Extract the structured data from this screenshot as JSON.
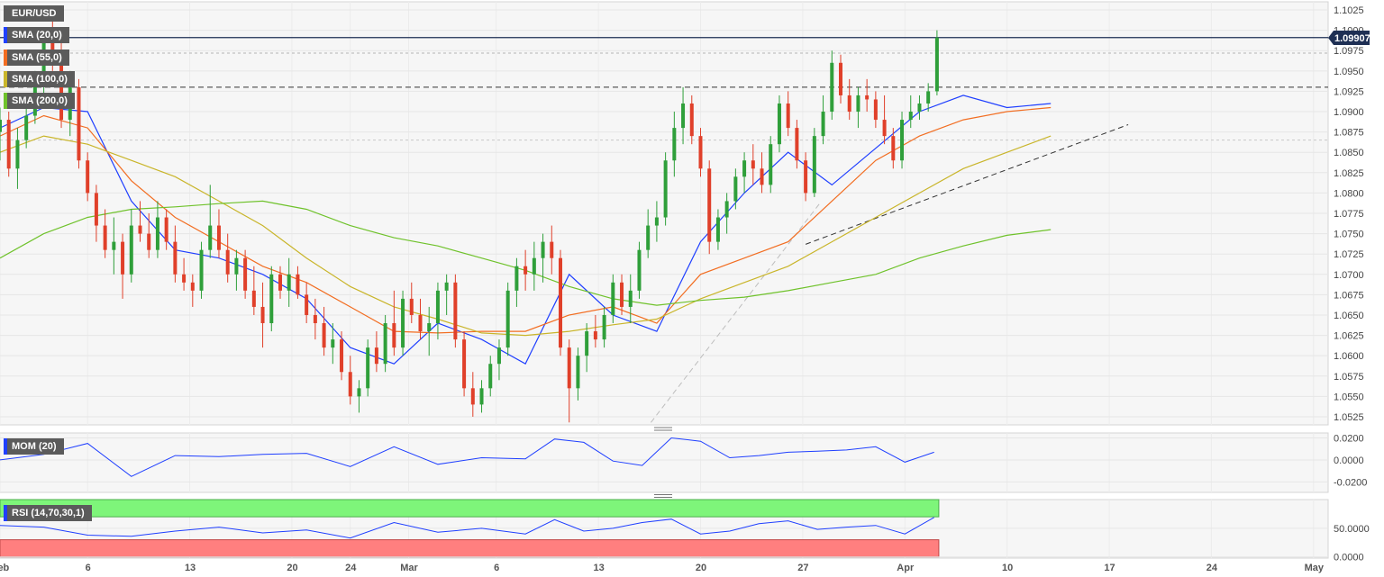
{
  "chart_data": {
    "type": "candlestick",
    "symbol": "EUR/USD",
    "last_price": "1.09907",
    "price_axis": {
      "ylim": [
        1.0515,
        1.1035
      ],
      "ticks": [
        "1.0525",
        "1.0550",
        "1.0575",
        "1.0600",
        "1.0625",
        "1.0650",
        "1.0675",
        "1.0700",
        "1.0725",
        "1.0750",
        "1.0775",
        "1.0800",
        "1.0825",
        "1.0850",
        "1.0875",
        "1.0900",
        "1.0925",
        "1.0950",
        "1.0975",
        "1.1000",
        "1.1025"
      ]
    },
    "x_axis": {
      "labels": [
        "Feb",
        "6",
        "13",
        "20",
        "24",
        "Mar",
        "6",
        "13",
        "20",
        "27",
        "Apr",
        "10",
        "17",
        "24",
        "May"
      ],
      "range_days": [
        0,
        91
      ]
    },
    "legend": [
      {
        "label": "EUR/USD",
        "color": "#5b5b5b"
      },
      {
        "label": "SMA (20,0)",
        "color": "#1f3fff"
      },
      {
        "label": "SMA (55,0)",
        "color": "#f26d21"
      },
      {
        "label": "SMA (100,0)",
        "color": "#c9b52a"
      },
      {
        "label": "SMA (200,0)",
        "color": "#6fc22b"
      }
    ],
    "horizontal_lines": [
      {
        "value": 1.0991,
        "style": "solid",
        "color": "#1e2f54"
      },
      {
        "value": 1.0972,
        "style": "dotted",
        "color": "#b4b4b4"
      },
      {
        "value": 1.093,
        "style": "dashed",
        "color": "#333333"
      },
      {
        "value": 1.0865,
        "style": "dotted",
        "color": "#c8c8c8"
      }
    ],
    "trendlines": [
      {
        "from": [
          55.2,
          1.0737
        ],
        "to": [
          77.3,
          1.0884
        ],
        "style": "dashed",
        "color": "#333333"
      },
      {
        "from": [
          44.6,
          1.0518
        ],
        "to": [
          56.2,
          1.0788
        ],
        "style": "dashed",
        "color": "#bdbdbd"
      }
    ],
    "sma": [
      {
        "name": "SMA (20,0)",
        "color": "#1f3fff",
        "x": [
          0,
          3,
          6,
          9,
          12,
          15,
          18,
          21,
          24,
          27,
          30,
          33,
          36,
          39,
          42,
          45,
          48,
          51,
          54,
          57,
          60,
          63,
          66,
          69,
          72
        ],
        "values": [
          1.088,
          1.0905,
          1.09,
          1.079,
          1.073,
          1.072,
          1.07,
          1.067,
          1.061,
          1.059,
          1.064,
          1.062,
          1.059,
          1.07,
          1.065,
          1.063,
          1.074,
          1.08,
          1.085,
          1.081,
          1.0855,
          1.09,
          1.092,
          1.0905,
          1.091
        ]
      },
      {
        "name": "SMA (55,0)",
        "color": "#f26d21",
        "x": [
          0,
          3,
          6,
          9,
          12,
          15,
          18,
          21,
          24,
          27,
          30,
          33,
          36,
          39,
          42,
          45,
          48,
          51,
          54,
          57,
          60,
          63,
          66,
          69,
          72
        ],
        "values": [
          1.087,
          1.0895,
          1.088,
          1.0815,
          1.077,
          1.074,
          1.071,
          1.069,
          1.066,
          1.063,
          1.0628,
          1.063,
          1.063,
          1.065,
          1.066,
          1.064,
          1.07,
          1.072,
          1.074,
          1.079,
          1.084,
          1.087,
          1.089,
          1.09,
          1.0905
        ]
      },
      {
        "name": "SMA (100,0)",
        "color": "#c9b52a",
        "x": [
          0,
          3,
          6,
          9,
          12,
          15,
          18,
          21,
          24,
          27,
          30,
          33,
          36,
          39,
          42,
          45,
          48,
          51,
          54,
          57,
          60,
          63,
          66,
          69,
          72
        ],
        "values": [
          1.085,
          1.087,
          1.086,
          1.084,
          1.082,
          1.079,
          1.076,
          1.072,
          1.0685,
          1.066,
          1.0645,
          1.0628,
          1.0625,
          1.063,
          1.0638,
          1.0645,
          1.067,
          1.069,
          1.071,
          1.074,
          1.077,
          1.08,
          1.083,
          1.085,
          1.087
        ]
      },
      {
        "name": "SMA (200,0)",
        "color": "#6fc22b",
        "x": [
          0,
          3,
          6,
          9,
          12,
          15,
          18,
          21,
          24,
          27,
          30,
          33,
          36,
          39,
          42,
          45,
          48,
          51,
          54,
          57,
          60,
          63,
          66,
          69,
          72
        ],
        "values": [
          1.072,
          1.075,
          1.077,
          1.078,
          1.0783,
          1.0787,
          1.079,
          1.078,
          1.076,
          1.0745,
          1.0735,
          1.072,
          1.0705,
          1.0685,
          1.067,
          1.0662,
          1.0668,
          1.0672,
          1.068,
          1.069,
          1.07,
          1.072,
          1.0735,
          1.0748,
          1.0755
        ]
      }
    ],
    "candles": [
      [
        0.0,
        1.0875,
        1.0905,
        1.084,
        1.089
      ],
      [
        0.6,
        1.089,
        1.09,
        1.082,
        1.083
      ],
      [
        1.2,
        1.083,
        1.088,
        1.0805,
        1.0865
      ],
      [
        1.8,
        1.0865,
        1.0905,
        1.0855,
        1.0895
      ],
      [
        2.4,
        1.0895,
        1.095,
        1.0885,
        1.0935
      ],
      [
        3.0,
        1.0935,
        1.1,
        1.092,
        1.0985
      ],
      [
        3.6,
        1.0985,
        1.103,
        1.095,
        1.096
      ],
      [
        4.2,
        1.096,
        1.099,
        1.088,
        1.089
      ],
      [
        4.8,
        1.089,
        1.095,
        1.087,
        1.093
      ],
      [
        5.4,
        1.093,
        1.094,
        1.083,
        1.084
      ],
      [
        6.0,
        1.084,
        1.085,
        1.079,
        1.08
      ],
      [
        6.6,
        1.08,
        1.081,
        1.074,
        1.076
      ],
      [
        7.2,
        1.076,
        1.078,
        1.072,
        1.073
      ],
      [
        7.8,
        1.073,
        1.077,
        1.07,
        1.074
      ],
      [
        8.4,
        1.074,
        1.075,
        1.067,
        1.07
      ],
      [
        9.0,
        1.07,
        1.078,
        1.069,
        1.076
      ],
      [
        9.6,
        1.076,
        1.079,
        1.074,
        1.075
      ],
      [
        10.2,
        1.075,
        1.0775,
        1.072,
        1.073
      ],
      [
        10.8,
        1.073,
        1.079,
        1.072,
        1.077
      ],
      [
        11.4,
        1.077,
        1.078,
        1.073,
        1.074
      ],
      [
        12.0,
        1.074,
        1.076,
        1.069,
        1.07
      ],
      [
        12.6,
        1.07,
        1.072,
        1.068,
        1.069
      ],
      [
        13.2,
        1.069,
        1.07,
        1.066,
        1.068
      ],
      [
        13.8,
        1.068,
        1.074,
        1.067,
        1.073
      ],
      [
        14.4,
        1.073,
        1.081,
        1.072,
        1.076
      ],
      [
        15.0,
        1.076,
        1.078,
        1.072,
        1.073
      ],
      [
        15.6,
        1.073,
        1.075,
        1.069,
        1.07
      ],
      [
        16.2,
        1.07,
        1.073,
        1.068,
        1.072
      ],
      [
        16.8,
        1.072,
        1.073,
        1.067,
        1.068
      ],
      [
        17.4,
        1.068,
        1.071,
        1.065,
        1.066
      ],
      [
        18.0,
        1.066,
        1.069,
        1.061,
        1.064
      ],
      [
        18.6,
        1.064,
        1.071,
        1.063,
        1.07
      ],
      [
        19.2,
        1.07,
        1.071,
        1.067,
        1.068
      ],
      [
        19.8,
        1.068,
        1.072,
        1.066,
        1.07
      ],
      [
        20.4,
        1.07,
        1.071,
        1.067,
        1.0675
      ],
      [
        21.0,
        1.0675,
        1.069,
        1.064,
        1.065
      ],
      [
        21.6,
        1.065,
        1.067,
        1.062,
        1.064
      ],
      [
        22.2,
        1.064,
        1.066,
        1.06,
        1.061
      ],
      [
        22.8,
        1.061,
        1.064,
        1.059,
        1.062
      ],
      [
        23.4,
        1.062,
        1.063,
        1.057,
        1.058
      ],
      [
        24.0,
        1.058,
        1.06,
        1.054,
        1.055
      ],
      [
        24.6,
        1.055,
        1.057,
        1.053,
        1.056
      ],
      [
        25.2,
        1.056,
        1.062,
        1.055,
        1.061
      ],
      [
        25.8,
        1.061,
        1.063,
        1.058,
        1.059
      ],
      [
        26.4,
        1.059,
        1.065,
        1.058,
        1.064
      ],
      [
        27.0,
        1.064,
        1.068,
        1.06,
        1.061
      ],
      [
        27.6,
        1.061,
        1.068,
        1.06,
        1.067
      ],
      [
        28.2,
        1.067,
        1.069,
        1.064,
        1.065
      ],
      [
        28.8,
        1.065,
        1.067,
        1.062,
        1.063
      ],
      [
        29.4,
        1.063,
        1.066,
        1.06,
        1.064
      ],
      [
        30.0,
        1.064,
        1.069,
        1.062,
        1.068
      ],
      [
        30.6,
        1.068,
        1.07,
        1.065,
        1.069
      ],
      [
        31.2,
        1.069,
        1.07,
        1.061,
        1.062
      ],
      [
        31.8,
        1.062,
        1.063,
        1.055,
        1.056
      ],
      [
        32.4,
        1.056,
        1.058,
        1.0525,
        1.054
      ],
      [
        33.0,
        1.054,
        1.057,
        1.053,
        1.056
      ],
      [
        33.6,
        1.056,
        1.06,
        1.055,
        1.059
      ],
      [
        34.2,
        1.059,
        1.062,
        1.057,
        1.061
      ],
      [
        34.8,
        1.061,
        1.069,
        1.06,
        1.068
      ],
      [
        35.4,
        1.068,
        1.072,
        1.066,
        1.071
      ],
      [
        36.0,
        1.071,
        1.073,
        1.068,
        1.07
      ],
      [
        36.6,
        1.07,
        1.074,
        1.068,
        1.072
      ],
      [
        37.2,
        1.072,
        1.075,
        1.069,
        1.074
      ],
      [
        37.8,
        1.074,
        1.076,
        1.07,
        1.072
      ],
      [
        38.4,
        1.072,
        1.073,
        1.06,
        1.061
      ],
      [
        39.0,
        1.061,
        1.062,
        1.0518,
        1.056
      ],
      [
        39.6,
        1.056,
        1.061,
        1.0545,
        1.06
      ],
      [
        40.2,
        1.06,
        1.064,
        1.058,
        1.063
      ],
      [
        40.8,
        1.063,
        1.065,
        1.061,
        1.062
      ],
      [
        41.4,
        1.062,
        1.066,
        1.061,
        1.065
      ],
      [
        42.0,
        1.065,
        1.07,
        1.064,
        1.069
      ],
      [
        42.6,
        1.069,
        1.07,
        1.065,
        1.066
      ],
      [
        43.2,
        1.066,
        1.07,
        1.064,
        1.068
      ],
      [
        43.8,
        1.068,
        1.074,
        1.067,
        1.073
      ],
      [
        44.4,
        1.073,
        1.078,
        1.072,
        1.076
      ],
      [
        45.0,
        1.076,
        1.079,
        1.074,
        1.077
      ],
      [
        45.6,
        1.077,
        1.085,
        1.076,
        1.084
      ],
      [
        46.2,
        1.084,
        1.09,
        1.082,
        1.088
      ],
      [
        46.8,
        1.088,
        1.093,
        1.086,
        1.091
      ],
      [
        47.4,
        1.091,
        1.092,
        1.086,
        1.087
      ],
      [
        48.0,
        1.087,
        1.088,
        1.082,
        1.083
      ],
      [
        48.6,
        1.083,
        1.084,
        1.0725,
        1.074
      ],
      [
        49.2,
        1.074,
        1.078,
        1.073,
        1.077
      ],
      [
        49.8,
        1.077,
        1.08,
        1.075,
        1.079
      ],
      [
        50.4,
        1.079,
        1.083,
        1.078,
        1.082
      ],
      [
        51.0,
        1.082,
        1.085,
        1.08,
        1.084
      ],
      [
        51.6,
        1.084,
        1.086,
        1.081,
        1.083
      ],
      [
        52.2,
        1.083,
        1.085,
        1.08,
        1.081
      ],
      [
        52.8,
        1.081,
        1.087,
        1.08,
        1.086
      ],
      [
        53.4,
        1.086,
        1.092,
        1.085,
        1.091
      ],
      [
        54.0,
        1.091,
        1.0925,
        1.087,
        1.088
      ],
      [
        54.6,
        1.088,
        1.089,
        1.083,
        1.084
      ],
      [
        55.2,
        1.084,
        1.085,
        1.079,
        1.08
      ],
      [
        55.8,
        1.08,
        1.088,
        1.0795,
        1.087
      ],
      [
        56.4,
        1.087,
        1.092,
        1.086,
        1.09
      ],
      [
        57.0,
        1.09,
        1.0975,
        1.089,
        1.096
      ],
      [
        57.6,
        1.096,
        1.097,
        1.091,
        1.092
      ],
      [
        58.2,
        1.092,
        1.094,
        1.089,
        1.09
      ],
      [
        58.8,
        1.09,
        1.093,
        1.088,
        1.092
      ],
      [
        59.4,
        1.092,
        1.094,
        1.09,
        1.0915
      ],
      [
        60.0,
        1.0915,
        1.0925,
        1.088,
        1.089
      ],
      [
        60.6,
        1.089,
        1.092,
        1.086,
        1.087
      ],
      [
        61.2,
        1.087,
        1.088,
        1.083,
        1.084
      ],
      [
        61.8,
        1.084,
        1.09,
        1.083,
        1.089
      ],
      [
        62.4,
        1.089,
        1.092,
        1.088,
        1.09
      ],
      [
        63.0,
        1.09,
        1.092,
        1.089,
        1.091
      ],
      [
        63.6,
        1.091,
        1.0935,
        1.09,
        1.0925
      ],
      [
        64.2,
        1.0925,
        1.1,
        1.092,
        1.0991
      ]
    ],
    "momentum": {
      "name": "MOM (20)",
      "ticks": [
        "0.0200",
        "0.0000",
        "-0.0200"
      ],
      "ylim": [
        -0.0295,
        0.0245
      ],
      "x": [
        0,
        3,
        6,
        9,
        12,
        15,
        18,
        21,
        24,
        27,
        30,
        33,
        36,
        38,
        40,
        42,
        44,
        46,
        48,
        50,
        52,
        54,
        56,
        58,
        60,
        62,
        64
      ],
      "values": [
        0.0,
        0.005,
        0.015,
        -0.015,
        0.004,
        0.003,
        0.005,
        0.006,
        -0.006,
        0.012,
        -0.004,
        0.002,
        0.001,
        0.019,
        0.016,
        -0.001,
        -0.005,
        0.02,
        0.017,
        0.002,
        0.004,
        0.007,
        0.008,
        0.009,
        0.012,
        -0.002,
        0.007
      ]
    },
    "rsi": {
      "name": "RSI (14,70,30,1)",
      "ticks": [
        "50.0000",
        "0.0000"
      ],
      "ylim": [
        -2,
        100
      ],
      "overbought": 70,
      "oversold": 30,
      "x": [
        0,
        3,
        6,
        9,
        12,
        15,
        18,
        21,
        24,
        27,
        30,
        33,
        36,
        38,
        40,
        42,
        44,
        46,
        48,
        50,
        52,
        54,
        56,
        58,
        60,
        62,
        64
      ],
      "values": [
        55,
        52,
        38,
        36,
        45,
        52,
        42,
        47,
        33,
        60,
        43,
        50,
        40,
        65,
        45,
        50,
        60,
        66,
        40,
        45,
        58,
        63,
        48,
        52,
        55,
        40,
        69
      ]
    }
  }
}
